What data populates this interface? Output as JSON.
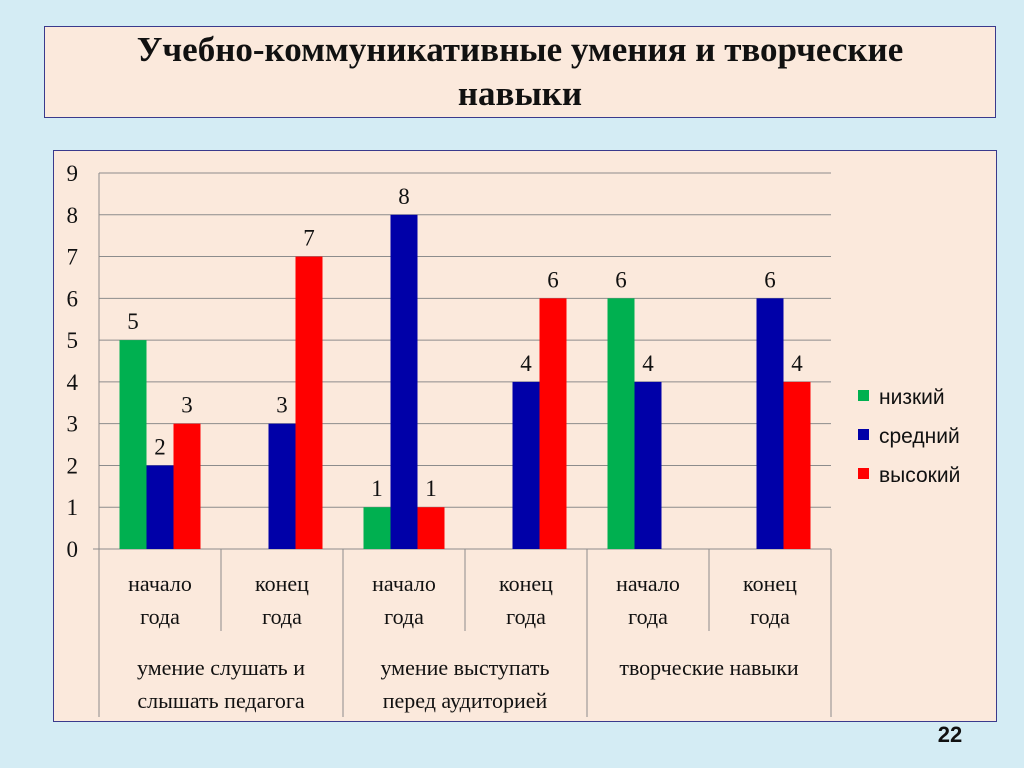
{
  "slide": {
    "title": "Учебно-коммуникативные умения и творческие навыки",
    "page_number": "22"
  },
  "chart_data": {
    "type": "bar",
    "title": "",
    "xlabel": "",
    "ylabel": "",
    "ylim": [
      0,
      9
    ],
    "yticks": [
      0,
      1,
      2,
      3,
      4,
      5,
      6,
      7,
      8,
      9
    ],
    "grid": true,
    "legend_position": "right",
    "categories": [
      {
        "line1": "начало",
        "line2": "года"
      },
      {
        "line1": "конец",
        "line2": "года"
      },
      {
        "line1": "начало",
        "line2": "года"
      },
      {
        "line1": "конец",
        "line2": "года"
      },
      {
        "line1": "начало",
        "line2": "года"
      },
      {
        "line1": "конец",
        "line2": "года"
      }
    ],
    "groups": [
      {
        "line1": "умение слушать и",
        "line2": "слышать педагога",
        "span": [
          0,
          1
        ]
      },
      {
        "line1": "умение выступать",
        "line2": "перед аудиторией",
        "span": [
          2,
          3
        ]
      },
      {
        "line1": "творческие навыки",
        "line2": "",
        "span": [
          4,
          5
        ]
      }
    ],
    "series": [
      {
        "name": "низкий",
        "color": "#00b050",
        "values": [
          5,
          null,
          1,
          null,
          6,
          null
        ]
      },
      {
        "name": "средний",
        "color": "#0000a8",
        "values": [
          2,
          3,
          8,
          4,
          4,
          6
        ]
      },
      {
        "name": "высокий",
        "color": "#ff0000",
        "values": [
          3,
          7,
          1,
          6,
          null,
          4
        ]
      }
    ]
  }
}
